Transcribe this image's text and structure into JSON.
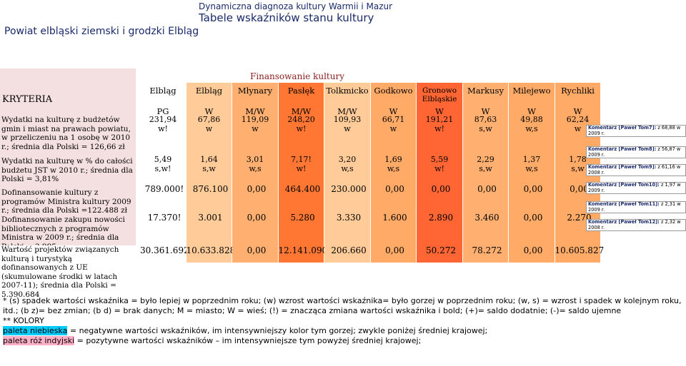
{
  "header": {
    "left_title": "Powiat elbląski ziemski i grodzki Elbląg",
    "top_line": "Dynamiczna diagnoza kultury Warmii i Mazur",
    "main_title": "Tabele wskaźników stanu kultury"
  },
  "kryteria": {
    "title": "KRYTERIA",
    "rows": [
      "Wydatki na kulturę z budżetów gmin i miast na prawach powiatu, w przeliczeniu na 1 osobę w 2010 r.; średnia dla Polski = 126,66 zł",
      "Wydatki na kulturę w % do całości budżetu JST w 2010 r.; średnia dla Polski = 3,81%",
      "Dofinansowanie kultury z programów Ministra kultury 2009 r.; średnia dla Polski =122.488 zł",
      "Dofinansowanie zakupu nowości bibliotecznych z programów Ministra w 2009 r.; średnia dla Polski = 3.995",
      "Wartość projektów związanych kulturą i turystyką dofinansowanych z UE (skumulowane środki w latach 2007-11); średnia dla Polski = 5.390.684"
    ]
  },
  "finansowanie_title": "Finansowanie kultury",
  "columns": [
    {
      "name": "Elbląg",
      "type": "PG",
      "color": "#ffffff"
    },
    {
      "name": "Elbląg",
      "type": "W",
      "color": "#ffcc99"
    },
    {
      "name": "Młynary",
      "type": "M/W",
      "color": "#ffb070"
    },
    {
      "name": "Pasłęk",
      "type": "M/W",
      "color": "#ff7733"
    },
    {
      "name": "Tolkmicko",
      "type": "M/W",
      "color": "#ffcc99"
    },
    {
      "name": "Godkowo",
      "type": "W",
      "color": "#ffaa66"
    },
    {
      "name": "Gronowo Elbląskie",
      "type": "W",
      "color": "#ff6633"
    },
    {
      "name": "Markusy",
      "type": "W",
      "color": "#ffb070"
    },
    {
      "name": "Milejewo",
      "type": "W",
      "color": "#ffaa66"
    },
    {
      "name": "Rychliki",
      "type": "W",
      "color": "#ffaa66"
    }
  ],
  "row1": [
    [
      "231,94",
      "w!"
    ],
    [
      "67,86",
      "w"
    ],
    [
      "119,09",
      "w"
    ],
    [
      "248,20",
      "w!"
    ],
    [
      "109,93",
      "w"
    ],
    [
      "66,71",
      "w"
    ],
    [
      "191,21",
      "w!"
    ],
    [
      "87,63",
      "s,w"
    ],
    [
      "49,88",
      "w,s"
    ],
    [
      "62,24",
      "w"
    ]
  ],
  "row2": [
    [
      "5,49",
      "s,w!"
    ],
    [
      "1,64",
      "s,w"
    ],
    [
      "3,01",
      "w,s"
    ],
    [
      "7,17!",
      "w!"
    ],
    [
      "3,20",
      "w,s"
    ],
    [
      "1,69",
      "w,s"
    ],
    [
      "5,59",
      "w!"
    ],
    [
      "2,29",
      "s,w"
    ],
    [
      "1,37",
      "w,s"
    ],
    [
      "1,78",
      "s,w"
    ]
  ],
  "row3": [
    "789.000!",
    "876.100",
    "0,00",
    "464.400",
    "230.000",
    "0,00",
    "0,00",
    "0,00",
    "0,00",
    "0,00"
  ],
  "row4": [
    "17.370!",
    "3.001",
    "0,00",
    "5.280",
    "3.330",
    "1.600",
    "2.890",
    "3.460",
    "0,00",
    "2.270"
  ],
  "row5": [
    "30.361.692!",
    "10.633.828",
    "0,00",
    "12.141.090",
    "206.660",
    "0,00",
    "50.272",
    "78.272",
    "0,00",
    "10.605.827"
  ],
  "comments": [
    {
      "author": "Komentarz [Paweł Tom7]:",
      "text": "z 68,88 w 2009 r."
    },
    {
      "author": "Komentarz [Paweł Tom8]:",
      "text": "z 56,87 w 2009 r."
    },
    {
      "author": "Komentarz [Paweł Tom9]:",
      "text": "z 61,16 w 2008 r."
    },
    {
      "author": "Komentarz [Paweł Tom10]:",
      "text": "z 1,97 w 2009 r."
    },
    {
      "author": "Komentarz [Paweł Tom11]:",
      "text": "z 2,31 w 2009 r."
    },
    {
      "author": "Komentarz [Paweł Tom12]:",
      "text": "z 2,32 w 2008 r."
    }
  ],
  "legend": {
    "line1": "* (s) spadek wartości wskaźnika = było lepiej w poprzednim roku; (w) wzrost wartości wskaźnika= było gorzej w poprzednim roku; (w, s) = wzrost i spadek w kolejnym roku, itd.; (b z)= bez zmian; (b d) = brak danych; M = miasto; W = wieś; (!) = znacząca zmiana wartości wskaźnika i bold; (+)= saldo dodatnie; (-)= saldo ujemne",
    "line2": "** KOLORY",
    "blue_label": "paleta niebieska",
    "blue_text": " = negatywne wartości wskaźników, im intensywniejszy kolor tym gorzej; zwykle poniżej średniej krajowej;",
    "pink_label": "paleta róż indyjski",
    "pink_text": " = pozytywne wartości wskaźników – im intensywniejsze tym powyżej średniej krajowej;"
  }
}
